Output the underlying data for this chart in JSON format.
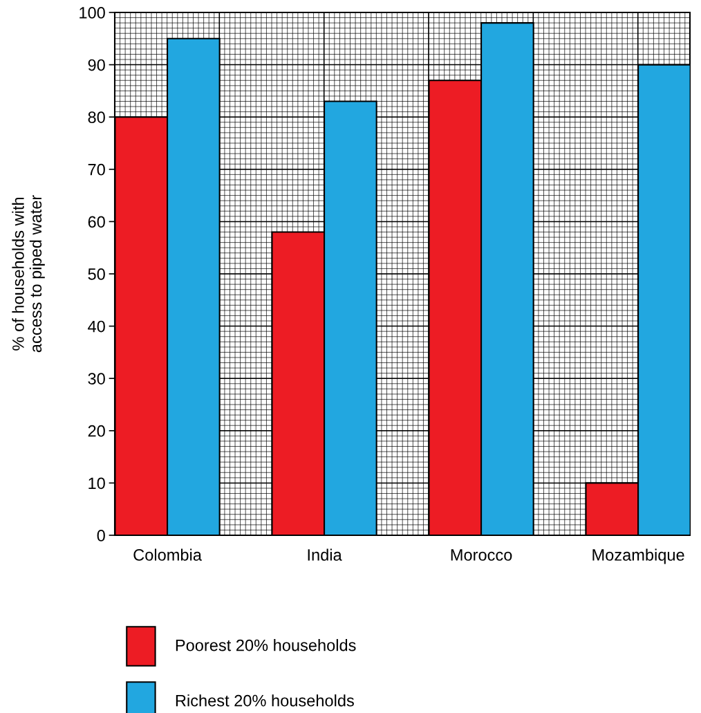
{
  "chart_data": {
    "type": "bar",
    "ylabel": "% of households with\naccess to piped water",
    "categories": [
      "Colombia",
      "India",
      "Morocco",
      "Mozambique"
    ],
    "series": [
      {
        "name": "Poorest 20% households",
        "color": "#ed1c24",
        "values": [
          80,
          58,
          87,
          10
        ]
      },
      {
        "name": "Richest 20% households",
        "color": "#22a7e0",
        "values": [
          95,
          83,
          98,
          90
        ]
      }
    ],
    "ylim": [
      0,
      100
    ],
    "yticks": [
      0,
      10,
      20,
      30,
      40,
      50,
      60,
      70,
      80,
      90,
      100
    ],
    "grid": true,
    "legend": "bottom"
  }
}
